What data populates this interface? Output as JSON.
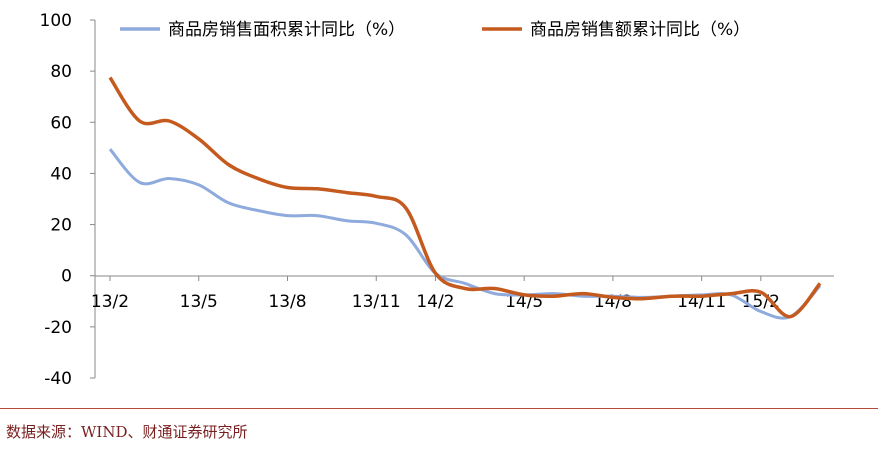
{
  "chart_data": {
    "type": "line",
    "y_ticks": [
      "100",
      "80",
      "60",
      "40",
      "20",
      "0",
      "-20",
      "-40"
    ],
    "ylim": [
      -40,
      100
    ],
    "x_tick_labels": [
      "13/2",
      "13/5",
      "13/8",
      "13/11",
      "14/2",
      "14/5",
      "14/8",
      "14/11",
      "15/2"
    ],
    "x": [
      "13/2",
      "13/3",
      "13/4",
      "13/5",
      "13/6",
      "13/7",
      "13/8",
      "13/9",
      "13/10",
      "13/11",
      "13/12",
      "14/2",
      "14/3",
      "14/4",
      "14/5",
      "14/6",
      "14/7",
      "14/8",
      "14/9",
      "14/10",
      "14/11",
      "14/12",
      "15/2",
      "15/3",
      "15/4"
    ],
    "series": [
      {
        "name": "商品房销售面积累计同比（%）",
        "color": "#8faadc",
        "values": [
          49.5,
          36.5,
          38,
          35.5,
          28.5,
          25.5,
          23.5,
          23.5,
          21.5,
          20.5,
          16,
          1,
          -3,
          -7,
          -7.5,
          -7,
          -8,
          -8,
          -8.5,
          -8,
          -7.5,
          -7.5,
          -14,
          -16,
          -4
        ]
      },
      {
        "name": "商品房销售额累计同比（%）",
        "color": "#c55a1f",
        "values": [
          77.5,
          60.5,
          60.5,
          53.5,
          43.5,
          38,
          34.5,
          34,
          32.5,
          31,
          26.5,
          1,
          -5,
          -5,
          -7.5,
          -8,
          -7,
          -8.5,
          -9,
          -8,
          -8,
          -7,
          -6.5,
          -16,
          -3
        ]
      }
    ]
  },
  "source": "数据来源：WIND、财通证券研究所"
}
